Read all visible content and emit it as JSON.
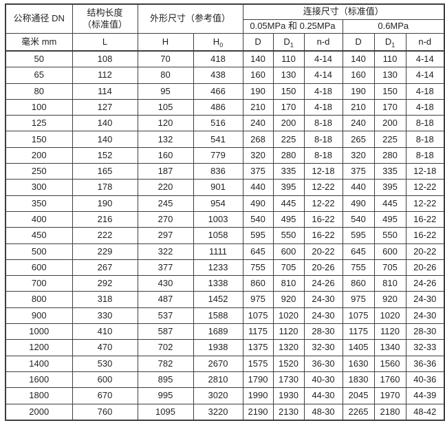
{
  "chart_data": {
    "type": "table",
    "header": {
      "nominal_diameter": "公称通径 DN",
      "structural_length": [
        "结构长度",
        "（标准值）"
      ],
      "overall_dimensions": "外形尺寸（参考值）",
      "connection_dimensions": "连接尺寸（标准值）",
      "pressure_low": "0.05MPa 和 0.25MPa",
      "pressure_high": "0.6MPa",
      "unit_columns": [
        {
          "base": "毫米 mm",
          "sub": ""
        },
        {
          "base": "L",
          "sub": ""
        },
        {
          "base": "H",
          "sub": ""
        },
        {
          "base": "H",
          "sub": "0"
        },
        {
          "base": "D",
          "sub": ""
        },
        {
          "base": "D",
          "sub": "1"
        },
        {
          "base": "n-d",
          "sub": ""
        },
        {
          "base": "D",
          "sub": ""
        },
        {
          "base": "D",
          "sub": "1"
        },
        {
          "base": "n-d",
          "sub": ""
        }
      ]
    },
    "rows": [
      [
        "50",
        "108",
        "70",
        "418",
        "140",
        "110",
        "4-14",
        "140",
        "110",
        "4-14"
      ],
      [
        "65",
        "112",
        "80",
        "438",
        "160",
        "130",
        "4-14",
        "160",
        "130",
        "4-14"
      ],
      [
        "80",
        "114",
        "95",
        "466",
        "190",
        "150",
        "4-18",
        "190",
        "150",
        "4-18"
      ],
      [
        "100",
        "127",
        "105",
        "486",
        "210",
        "170",
        "4-18",
        "210",
        "170",
        "4-18"
      ],
      [
        "125",
        "140",
        "120",
        "516",
        "240",
        "200",
        "8-18",
        "240",
        "200",
        "8-18"
      ],
      [
        "150",
        "140",
        "132",
        "541",
        "268",
        "225",
        "8-18",
        "265",
        "225",
        "8-18"
      ],
      [
        "200",
        "152",
        "160",
        "779",
        "320",
        "280",
        "8-18",
        "320",
        "280",
        "8-18"
      ],
      [
        "250",
        "165",
        "187",
        "836",
        "375",
        "335",
        "12-18",
        "375",
        "335",
        "12-18"
      ],
      [
        "300",
        "178",
        "220",
        "901",
        "440",
        "395",
        "12-22",
        "440",
        "395",
        "12-22"
      ],
      [
        "350",
        "190",
        "245",
        "954",
        "490",
        "445",
        "12-22",
        "490",
        "445",
        "12-22"
      ],
      [
        "400",
        "216",
        "270",
        "1003",
        "540",
        "495",
        "16-22",
        "540",
        "495",
        "16-22"
      ],
      [
        "450",
        "222",
        "297",
        "1058",
        "595",
        "550",
        "16-22",
        "595",
        "550",
        "16-22"
      ],
      [
        "500",
        "229",
        "322",
        "1111",
        "645",
        "600",
        "20-22",
        "645",
        "600",
        "20-22"
      ],
      [
        "600",
        "267",
        "377",
        "1233",
        "755",
        "705",
        "20-26",
        "755",
        "705",
        "20-26"
      ],
      [
        "700",
        "292",
        "430",
        "1338",
        "860",
        "810",
        "24-26",
        "860",
        "810",
        "24-26"
      ],
      [
        "800",
        "318",
        "487",
        "1452",
        "975",
        "920",
        "24-30",
        "975",
        "920",
        "24-30"
      ],
      [
        "900",
        "330",
        "537",
        "1588",
        "1075",
        "1020",
        "24-30",
        "1075",
        "1020",
        "24-30"
      ],
      [
        "1000",
        "410",
        "587",
        "1689",
        "1175",
        "1120",
        "28-30",
        "1175",
        "1120",
        "28-30"
      ],
      [
        "1200",
        "470",
        "702",
        "1938",
        "1375",
        "1320",
        "32-30",
        "1405",
        "1340",
        "32-33"
      ],
      [
        "1400",
        "530",
        "782",
        "2670",
        "1575",
        "1520",
        "36-30",
        "1630",
        "1560",
        "36-36"
      ],
      [
        "1600",
        "600",
        "895",
        "2810",
        "1790",
        "1730",
        "40-30",
        "1830",
        "1760",
        "40-36"
      ],
      [
        "1800",
        "670",
        "995",
        "3020",
        "1990",
        "1930",
        "44-30",
        "2045",
        "1970",
        "44-39"
      ],
      [
        "2000",
        "760",
        "1095",
        "3220",
        "2190",
        "2130",
        "48-30",
        "2265",
        "2180",
        "48-42"
      ]
    ]
  },
  "colors": {
    "border": "#3d3d3d",
    "text": "#1f1f1f",
    "background": "#ffffff"
  }
}
